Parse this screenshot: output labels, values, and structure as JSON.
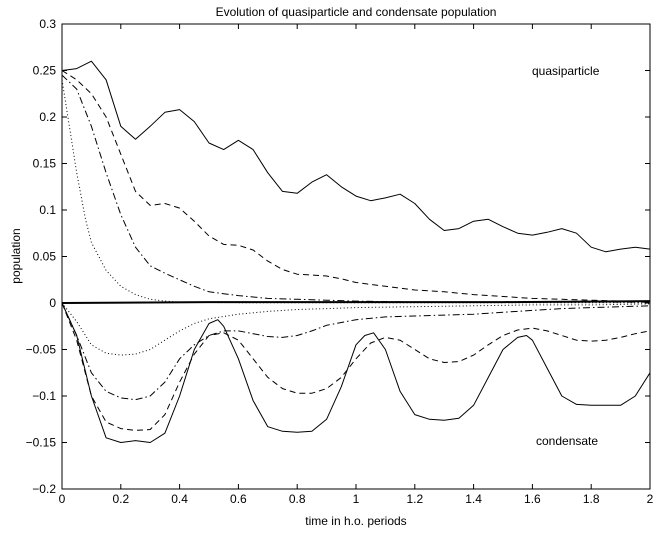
{
  "chart_data": {
    "type": "line",
    "title": "Evolution of quasiparticle and condensate population",
    "xlabel": "time in h.o. periods",
    "ylabel": "population",
    "xlim": [
      0,
      2
    ],
    "ylim": [
      -0.2,
      0.3
    ],
    "xticks": [
      "0",
      "0.2",
      "0.4",
      "0.6",
      "0.8",
      "1",
      "1.2",
      "1.4",
      "1.6",
      "1.8",
      "2"
    ],
    "yticks": [
      "0.3",
      "0.25",
      "0.2",
      "0.15",
      "0.1",
      "0.05",
      "0",
      "−0.05",
      "−0.1",
      "−0.15",
      "−0.2"
    ],
    "grid": false,
    "annotations": [
      {
        "text": "quasiparticle",
        "x": 1.68,
        "y": 0.23
      },
      {
        "text": "condensate",
        "x": 1.62,
        "y": -0.16
      }
    ],
    "series": [
      {
        "style": "solid",
        "x": [
          0,
          0.05,
          0.1,
          0.15,
          0.2,
          0.25,
          0.3,
          0.35,
          0.4,
          0.45,
          0.5,
          0.55,
          0.6,
          0.65,
          0.7,
          0.75,
          0.8,
          0.85,
          0.9,
          0.95,
          1.0,
          1.05,
          1.1,
          1.15,
          1.2,
          1.25,
          1.3,
          1.35,
          1.4,
          1.45,
          1.5,
          1.55,
          1.6,
          1.65,
          1.7,
          1.75,
          1.8,
          1.85,
          1.9,
          1.95,
          2.0
        ],
        "values": [
          0.25,
          0.252,
          0.26,
          0.24,
          0.19,
          0.176,
          0.19,
          0.205,
          0.208,
          0.195,
          0.172,
          0.165,
          0.175,
          0.165,
          0.14,
          0.12,
          0.118,
          0.13,
          0.138,
          0.125,
          0.115,
          0.11,
          0.113,
          0.117,
          0.107,
          0.09,
          0.078,
          0.08,
          0.088,
          0.09,
          0.082,
          0.075,
          0.073,
          0.076,
          0.08,
          0.075,
          0.06,
          0.055,
          0.058,
          0.06,
          0.058
        ]
      },
      {
        "style": "dashed",
        "x": [
          0,
          0.05,
          0.1,
          0.15,
          0.2,
          0.25,
          0.3,
          0.35,
          0.4,
          0.45,
          0.5,
          0.55,
          0.6,
          0.65,
          0.7,
          0.75,
          0.8,
          0.85,
          0.9,
          0.95,
          1.0,
          1.1,
          1.2,
          1.3,
          1.4,
          1.5,
          1.6,
          1.7,
          1.8,
          1.9,
          2.0
        ],
        "values": [
          0.25,
          0.24,
          0.225,
          0.2,
          0.16,
          0.12,
          0.105,
          0.107,
          0.102,
          0.088,
          0.072,
          0.063,
          0.062,
          0.057,
          0.045,
          0.036,
          0.031,
          0.03,
          0.029,
          0.026,
          0.022,
          0.018,
          0.014,
          0.012,
          0.009,
          0.007,
          0.005,
          0.004,
          0.003,
          0.002,
          0.002
        ]
      },
      {
        "style": "dashdot",
        "x": [
          0,
          0.05,
          0.1,
          0.15,
          0.2,
          0.25,
          0.3,
          0.35,
          0.4,
          0.45,
          0.5,
          0.6,
          0.7,
          0.8,
          0.9,
          1.0,
          1.2,
          1.4,
          1.6,
          1.8,
          2.0
        ],
        "values": [
          0.245,
          0.23,
          0.19,
          0.14,
          0.095,
          0.06,
          0.04,
          0.032,
          0.025,
          0.018,
          0.012,
          0.008,
          0.005,
          0.004,
          0.003,
          0.002,
          0.001,
          0.001,
          0.001,
          0.001,
          0.001
        ]
      },
      {
        "style": "dotted",
        "x": [
          0,
          0.02,
          0.05,
          0.08,
          0.1,
          0.15,
          0.2,
          0.25,
          0.3,
          0.35,
          0.4,
          0.5,
          0.6,
          0.8,
          1.0,
          1.5,
          2.0
        ],
        "values": [
          0.24,
          0.2,
          0.14,
          0.09,
          0.065,
          0.035,
          0.018,
          0.009,
          0.004,
          0.002,
          0.001,
          0.0005,
          0.0003,
          0.0002,
          0.0002,
          0.0002,
          0.0002
        ]
      },
      {
        "style": "solid",
        "x": [
          0,
          0.05,
          0.1,
          0.15,
          0.2,
          0.25,
          0.3,
          0.35,
          0.4,
          0.45,
          0.5,
          0.53,
          0.55,
          0.6,
          0.65,
          0.7,
          0.75,
          0.8,
          0.85,
          0.9,
          0.95,
          1.0,
          1.03,
          1.06,
          1.1,
          1.15,
          1.2,
          1.25,
          1.3,
          1.35,
          1.4,
          1.45,
          1.5,
          1.55,
          1.58,
          1.6,
          1.65,
          1.7,
          1.75,
          1.8,
          1.85,
          1.9,
          1.95,
          2.0
        ],
        "values": [
          0,
          -0.035,
          -0.1,
          -0.145,
          -0.15,
          -0.148,
          -0.15,
          -0.14,
          -0.1,
          -0.05,
          -0.022,
          -0.018,
          -0.025,
          -0.06,
          -0.105,
          -0.133,
          -0.138,
          -0.139,
          -0.138,
          -0.125,
          -0.09,
          -0.045,
          -0.035,
          -0.032,
          -0.05,
          -0.095,
          -0.12,
          -0.125,
          -0.126,
          -0.124,
          -0.11,
          -0.08,
          -0.05,
          -0.037,
          -0.035,
          -0.04,
          -0.07,
          -0.1,
          -0.109,
          -0.11,
          -0.11,
          -0.11,
          -0.1,
          -0.075
        ]
      },
      {
        "style": "dashed",
        "x": [
          0,
          0.05,
          0.1,
          0.15,
          0.2,
          0.25,
          0.3,
          0.35,
          0.4,
          0.45,
          0.5,
          0.55,
          0.6,
          0.65,
          0.7,
          0.75,
          0.8,
          0.85,
          0.9,
          0.95,
          1.0,
          1.05,
          1.1,
          1.15,
          1.2,
          1.25,
          1.3,
          1.35,
          1.4,
          1.45,
          1.5,
          1.55,
          1.6,
          1.65,
          1.7,
          1.75,
          1.8,
          1.85,
          1.9,
          1.95,
          2.0
        ],
        "values": [
          0,
          -0.04,
          -0.1,
          -0.128,
          -0.135,
          -0.137,
          -0.136,
          -0.12,
          -0.085,
          -0.055,
          -0.035,
          -0.032,
          -0.04,
          -0.06,
          -0.08,
          -0.092,
          -0.097,
          -0.097,
          -0.092,
          -0.08,
          -0.06,
          -0.043,
          -0.037,
          -0.04,
          -0.05,
          -0.06,
          -0.064,
          -0.063,
          -0.056,
          -0.045,
          -0.035,
          -0.029,
          -0.027,
          -0.03,
          -0.035,
          -0.04,
          -0.041,
          -0.04,
          -0.037,
          -0.033,
          -0.03
        ]
      },
      {
        "style": "dashdot",
        "x": [
          0,
          0.05,
          0.1,
          0.15,
          0.2,
          0.25,
          0.3,
          0.35,
          0.4,
          0.45,
          0.5,
          0.55,
          0.6,
          0.65,
          0.7,
          0.75,
          0.8,
          0.85,
          0.9,
          1.0,
          1.1,
          1.2,
          1.3,
          1.4,
          1.5,
          1.6,
          1.7,
          1.8,
          1.9,
          2.0
        ],
        "values": [
          0,
          -0.035,
          -0.075,
          -0.095,
          -0.102,
          -0.104,
          -0.1,
          -0.085,
          -0.06,
          -0.045,
          -0.035,
          -0.03,
          -0.03,
          -0.033,
          -0.036,
          -0.037,
          -0.035,
          -0.03,
          -0.024,
          -0.018,
          -0.015,
          -0.014,
          -0.013,
          -0.012,
          -0.01,
          -0.008,
          -0.006,
          -0.005,
          -0.004,
          -0.003
        ]
      },
      {
        "style": "dotted",
        "x": [
          0,
          0.05,
          0.1,
          0.15,
          0.2,
          0.25,
          0.3,
          0.35,
          0.4,
          0.45,
          0.5,
          0.6,
          0.7,
          0.8,
          0.9,
          1.0,
          1.2,
          1.4,
          1.6,
          1.8,
          2.0
        ],
        "values": [
          0,
          -0.02,
          -0.045,
          -0.054,
          -0.056,
          -0.055,
          -0.05,
          -0.04,
          -0.03,
          -0.022,
          -0.017,
          -0.012,
          -0.009,
          -0.007,
          -0.006,
          -0.005,
          -0.004,
          -0.003,
          -0.002,
          -0.002,
          -0.001
        ]
      },
      {
        "style": "solid",
        "x": [
          0,
          0.5,
          1.0,
          1.5,
          2.0
        ],
        "values": [
          0,
          0.001,
          0.001,
          0.001,
          0.002
        ]
      }
    ]
  }
}
